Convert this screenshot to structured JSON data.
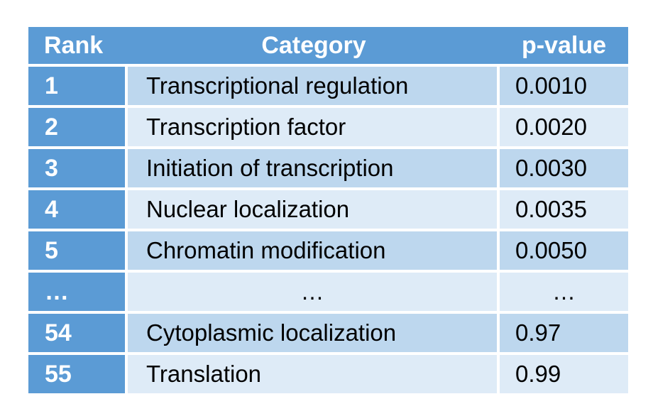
{
  "chart_data": {
    "type": "table",
    "title": "",
    "columns": [
      "Rank",
      "Category",
      "p-value"
    ],
    "rows": [
      [
        "1",
        "Transcriptional regulation",
        "0.0010"
      ],
      [
        "2",
        "Transcription factor",
        "0.0020"
      ],
      [
        "3",
        "Initiation of transcription",
        "0.0030"
      ],
      [
        "4",
        "Nuclear localization",
        "0.0035"
      ],
      [
        "5",
        "Chromatin modification",
        "0.0050"
      ],
      [
        "…",
        "…",
        "…"
      ],
      [
        "54",
        "Cytoplasmic localization",
        "0.97"
      ],
      [
        "55",
        "Translation",
        "0.99"
      ]
    ]
  },
  "colors": {
    "header_bg": "#5b9bd5",
    "rank_col_bg": "#5b9bd5",
    "header_text": "#ffffff",
    "body_text": "#000000",
    "band_dark": "#bdd7ee",
    "band_light": "#deebf7"
  }
}
